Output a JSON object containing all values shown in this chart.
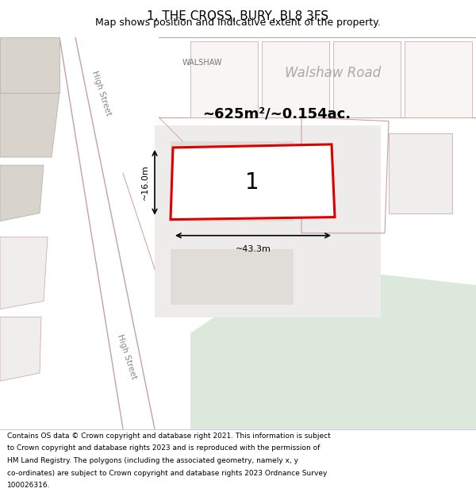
{
  "title": "1, THE CROSS, BURY, BL8 3FS",
  "subtitle": "Map shows position and indicative extent of the property.",
  "footer_lines": [
    "Contains OS data © Crown copyright and database right 2021. This information is subject",
    "to Crown copyright and database rights 2023 and is reproduced with the permission of",
    "HM Land Registry. The polygons (including the associated geometry, namely x, y",
    "co-ordinates) are subject to Crown copyright and database rights 2023 Ordnance Survey",
    "100026316."
  ],
  "area_label": "~625m²/~0.154ac.",
  "width_label": "~43.3m",
  "height_label": "~16.0m",
  "lot_number": "1",
  "map_bg": "#f5f4f2",
  "plot_outline_color": "#dd0000",
  "building_color": "#d8d4cc",
  "green_area_color": "#dce8dc",
  "road_line_color": "#c8a0a0",
  "street_label_color": "#888888",
  "title_fontsize": 11,
  "subtitle_fontsize": 9,
  "footer_fontsize": 6.5
}
